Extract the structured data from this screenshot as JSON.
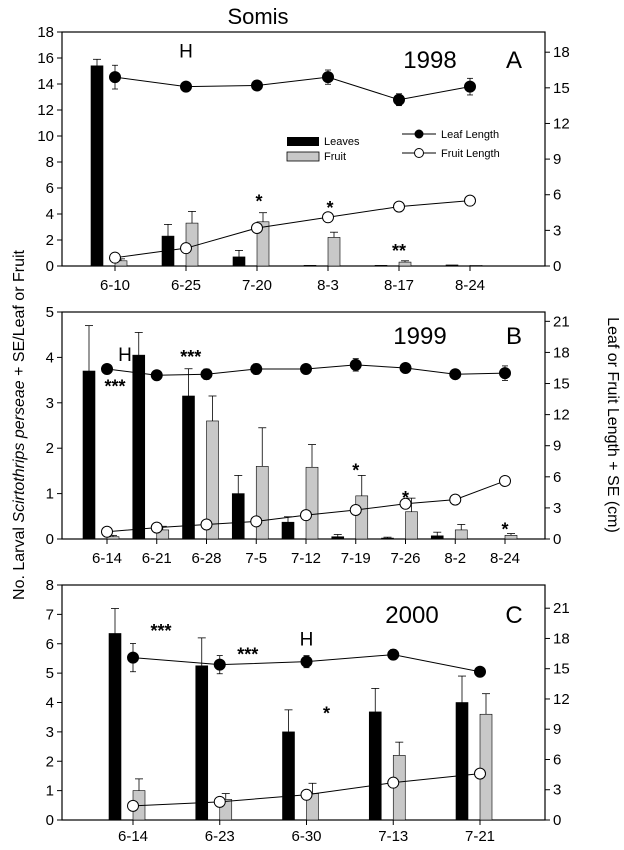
{
  "page_title": "Somis",
  "y_label_left": {
    "pre": "No. Larval ",
    "italic": "Scirtothrips perseae",
    "post": " + SE/Leaf or Fruit"
  },
  "y_label_right": "Leaf or Fruit Length + SE (cm)",
  "legend_bars": {
    "leaves": "Leaves",
    "fruit": "Fruit"
  },
  "legend_lines": {
    "leaf": "Leaf Length",
    "fruit": "Fruit Length"
  },
  "colors": {
    "leaves_bar": "#000000",
    "fruit_bar": "#c8c8c8",
    "leaf_marker": "#000000",
    "fruit_marker": "#ffffff"
  },
  "chart_data": [
    {
      "type": "bar",
      "panel": "A",
      "year": "1998",
      "categories": [
        "6-10",
        "6-25",
        "7-20",
        "8-3",
        "8-17",
        "8-24"
      ],
      "ylim_left": [
        0,
        18
      ],
      "yticks_left": [
        0,
        2,
        4,
        6,
        8,
        10,
        12,
        14,
        16,
        18
      ],
      "ylim_right": [
        0,
        19.7
      ],
      "yticks_right": [
        0,
        3,
        6,
        9,
        12,
        15,
        18
      ],
      "series": [
        {
          "name": "Leaves",
          "axis": "left",
          "values": [
            15.4,
            2.3,
            0.7,
            0.05,
            0.05,
            0.08
          ],
          "se": [
            0.5,
            0.9,
            0.5,
            0,
            0,
            0
          ]
        },
        {
          "name": "Fruit",
          "axis": "left",
          "values": [
            0.4,
            3.3,
            3.4,
            2.2,
            0.3,
            0.05
          ],
          "se": [
            0.15,
            0.9,
            0.7,
            0.4,
            0.1,
            0
          ]
        },
        {
          "name": "Leaf Length",
          "axis": "right",
          "values": [
            15.9,
            15.1,
            15.2,
            15.9,
            14.0,
            15.1
          ],
          "se": [
            1.0,
            0.3,
            0.3,
            0.6,
            0.5,
            0.7
          ]
        },
        {
          "name": "Fruit Length",
          "axis": "right",
          "values": [
            0.7,
            1.5,
            3.2,
            4.1,
            5.0,
            5.5
          ],
          "se": [
            0.2,
            0.2,
            0.2,
            0.2,
            0.2,
            0.2
          ]
        }
      ],
      "annotations": [
        {
          "text": "H",
          "x": "6-25",
          "y": 16.5
        },
        {
          "text": "*",
          "x": "7-20",
          "y": 5.1
        },
        {
          "text": "*",
          "x": "8-3",
          "y": 4.6
        },
        {
          "text": "**",
          "x": "8-17",
          "y": 1.3
        }
      ]
    },
    {
      "type": "bar",
      "panel": "B",
      "year": "1999",
      "categories": [
        "6-14",
        "6-21",
        "6-28",
        "7-5",
        "7-12",
        "7-19",
        "7-26",
        "8-2",
        "8-24"
      ],
      "ylim_left": [
        0,
        5
      ],
      "yticks_left": [
        0,
        1,
        2,
        3,
        4,
        5
      ],
      "ylim_right": [
        0,
        21.9
      ],
      "yticks_right": [
        0,
        3,
        6,
        9,
        12,
        15,
        18,
        21
      ],
      "series": [
        {
          "name": "Leaves",
          "axis": "left",
          "values": [
            3.7,
            4.05,
            3.15,
            1.0,
            0.37,
            0.05,
            0.02,
            0.07,
            0
          ],
          "se": [
            1.0,
            0.5,
            0.6,
            0.4,
            0.12,
            0.05,
            0.02,
            0.08,
            0
          ]
        },
        {
          "name": "Fruit",
          "axis": "left",
          "values": [
            0.05,
            0.2,
            2.6,
            1.6,
            1.58,
            0.95,
            0.6,
            0.2,
            0.08
          ],
          "se": [
            0.03,
            0.08,
            0.55,
            0.85,
            0.5,
            0.45,
            0.3,
            0.12,
            0.04
          ]
        },
        {
          "name": "Leaf Length",
          "axis": "right",
          "values": [
            16.4,
            15.8,
            15.9,
            16.4,
            16.4,
            16.8,
            16.5,
            15.9,
            16.0
          ],
          "se": [
            0.3,
            0.3,
            0.5,
            0.5,
            0.4,
            0.6,
            0.4,
            0.3,
            0.7
          ]
        },
        {
          "name": "Fruit Length",
          "axis": "right",
          "values": [
            0.7,
            1.1,
            1.4,
            1.7,
            2.3,
            2.8,
            3.4,
            3.8,
            5.6
          ],
          "se": [
            0.1,
            0.1,
            0.1,
            0.1,
            0.15,
            0.15,
            0.2,
            0.2,
            0.2
          ]
        }
      ],
      "annotations": [
        {
          "text": "H",
          "x": "6-14",
          "y": 4.05
        },
        {
          "text": "***",
          "x": "6-14",
          "y": 3.4
        },
        {
          "text": "***",
          "x": "6-21",
          "y": 4.05
        },
        {
          "text": "*",
          "x": "7-19",
          "y": 1.55
        },
        {
          "text": "*",
          "x": "7-26",
          "y": 0.95
        },
        {
          "text": "*",
          "x": "8-24",
          "y": 0.25
        }
      ]
    },
    {
      "type": "bar",
      "panel": "C",
      "year": "2000",
      "categories": [
        "6-14",
        "6-23",
        "6-30",
        "7-13",
        "7-21"
      ],
      "ylim_left": [
        0,
        8
      ],
      "yticks_left": [
        0,
        1,
        2,
        3,
        4,
        5,
        6,
        7,
        8
      ],
      "ylim_right": [
        0,
        23.3
      ],
      "yticks_right": [
        0,
        3,
        6,
        9,
        12,
        15,
        18,
        21
      ],
      "series": [
        {
          "name": "Leaves",
          "axis": "left",
          "values": [
            6.35,
            5.25,
            3.0,
            3.68,
            4.0
          ],
          "se": [
            0.85,
            0.95,
            0.75,
            0.8,
            0.9
          ]
        },
        {
          "name": "Fruit",
          "axis": "left",
          "values": [
            1.0,
            0.7,
            0.9,
            2.2,
            3.6
          ],
          "se": [
            0.4,
            0.2,
            0.35,
            0.45,
            0.7
          ]
        },
        {
          "name": "Leaf Length",
          "axis": "right",
          "values": [
            16.1,
            15.4,
            15.7,
            16.4,
            14.7
          ],
          "se": [
            1.4,
            0.9,
            0.6,
            0.5,
            0.4
          ]
        },
        {
          "name": "Fruit Length",
          "axis": "right",
          "values": [
            1.4,
            1.8,
            2.5,
            3.7,
            4.6
          ],
          "se": [
            0.2,
            0.2,
            0.2,
            0.2,
            0.2
          ]
        }
      ],
      "annotations": [
        {
          "text": "***",
          "x": "6-14",
          "y": 6.5
        },
        {
          "text": "***",
          "x": "6-23",
          "y": 5.7
        },
        {
          "text": "H",
          "x": "6-30",
          "y": 6.15
        },
        {
          "text": "*",
          "x": "6-30",
          "y": 3.7
        }
      ]
    }
  ]
}
